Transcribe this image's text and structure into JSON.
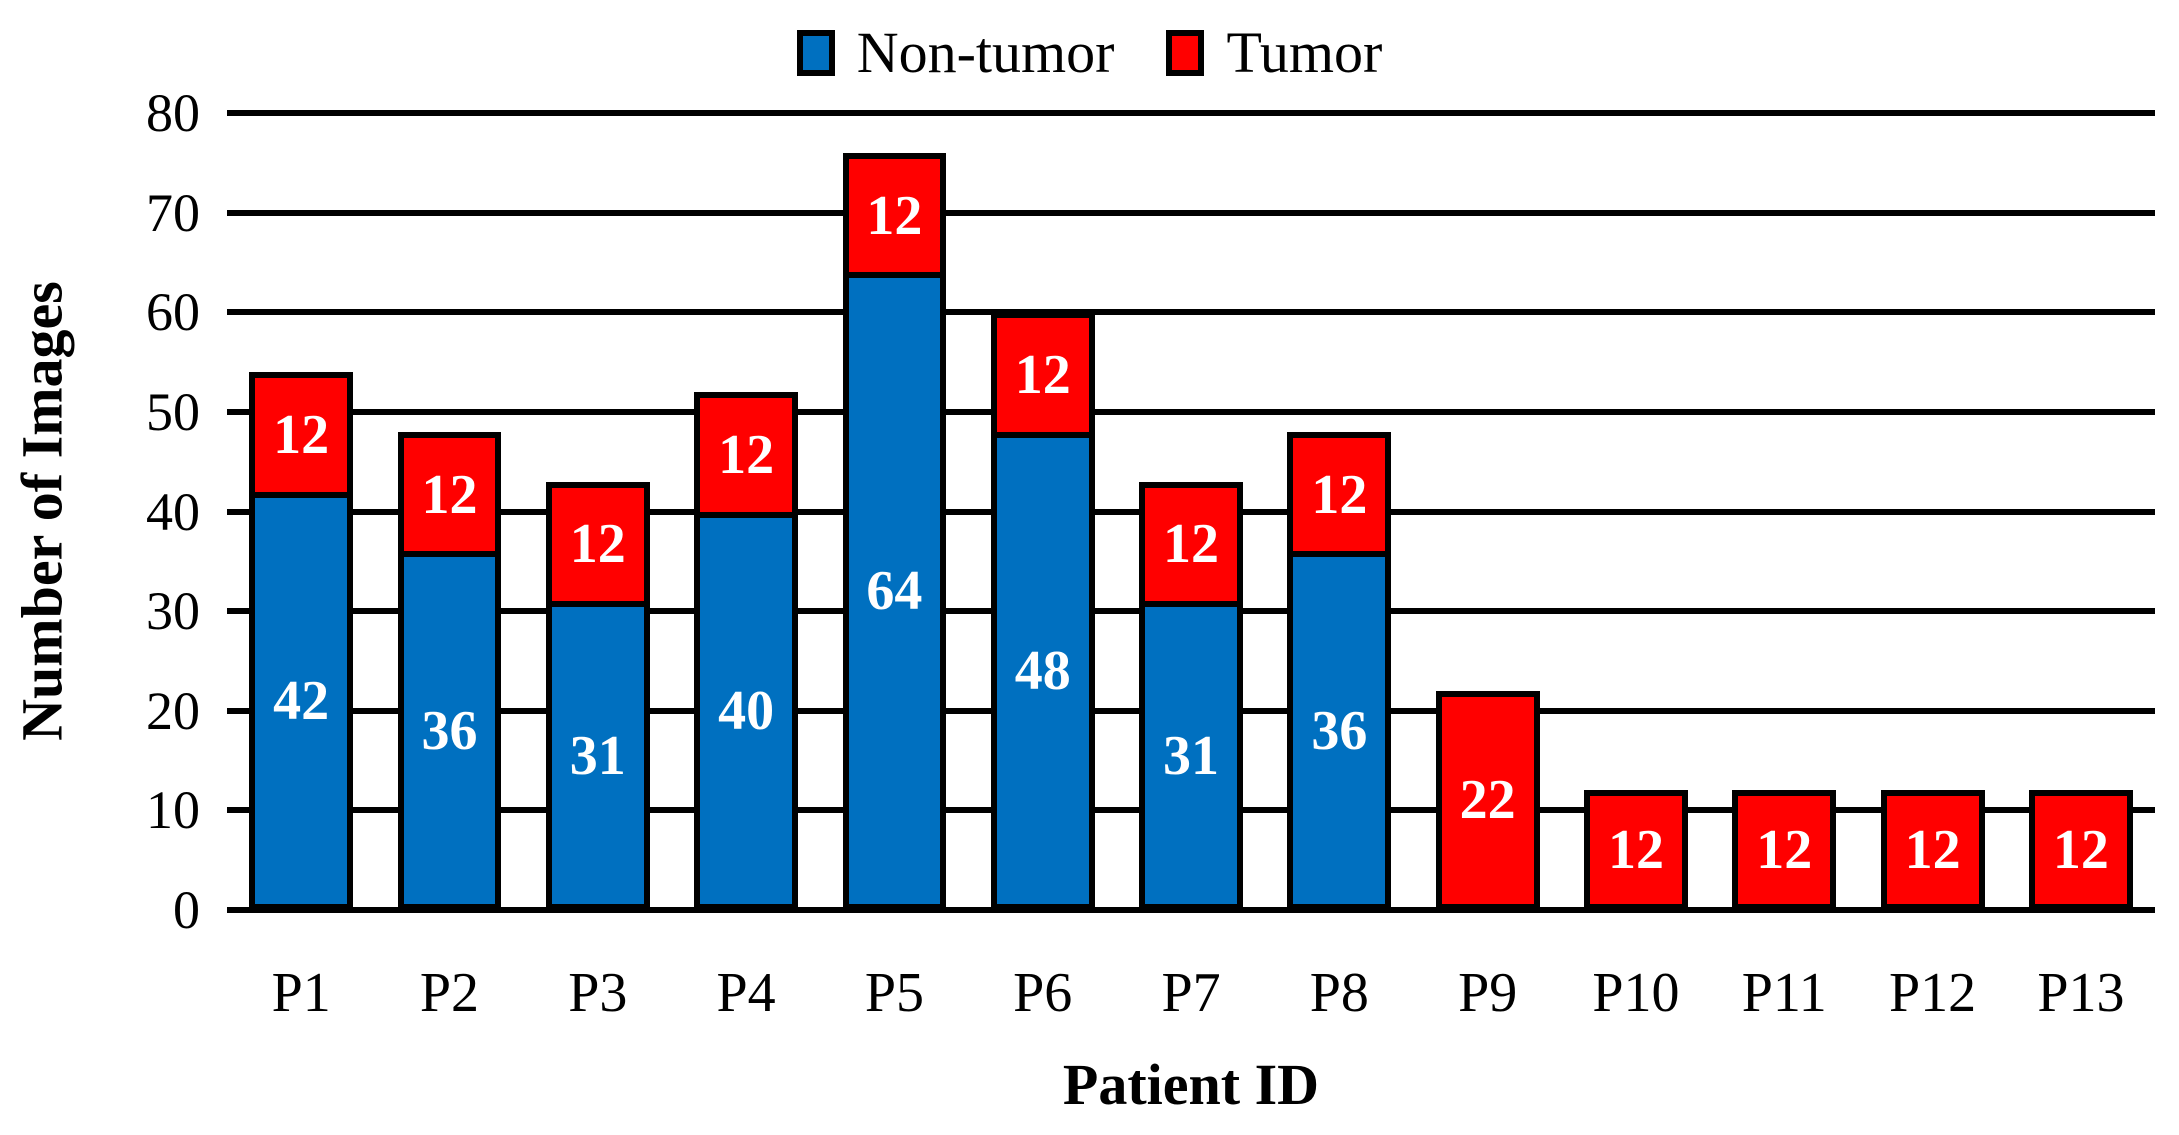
{
  "figure": {
    "background": "#FFFFFF",
    "grid_color": "#000000",
    "bar_label_color": "#FFFFFF"
  },
  "chart_data": {
    "type": "bar",
    "stacked": true,
    "title": "",
    "xlabel": "Patient ID",
    "ylabel": "Number of Images",
    "ylim": [
      0,
      80
    ],
    "yticks": [
      0,
      10,
      20,
      30,
      40,
      50,
      60,
      70,
      80
    ],
    "grid": "horizontal",
    "legend_position": "top-center",
    "categories": [
      "P1",
      "P2",
      "P3",
      "P4",
      "P5",
      "P6",
      "P7",
      "P8",
      "P9",
      "P10",
      "P11",
      "P12",
      "P13"
    ],
    "series": [
      {
        "name": "Non-tumor",
        "color": "#0070C0",
        "values": [
          42,
          36,
          31,
          40,
          64,
          48,
          31,
          36,
          0,
          0,
          0,
          0,
          0
        ]
      },
      {
        "name": "Tumor",
        "color": "#FF0000",
        "values": [
          12,
          12,
          12,
          12,
          12,
          12,
          12,
          12,
          22,
          12,
          12,
          12,
          12
        ]
      }
    ],
    "totals": [
      54,
      48,
      43,
      52,
      76,
      60,
      43,
      48,
      22,
      12,
      12,
      12,
      12
    ]
  }
}
